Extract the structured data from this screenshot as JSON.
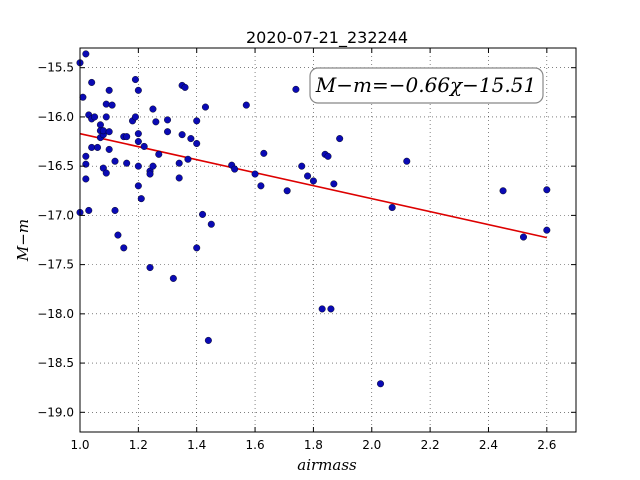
{
  "chart_data": {
    "type": "scatter",
    "title": "2020-07-21_232244",
    "xlabel": "airmass",
    "ylabel": "M−m",
    "xlim": [
      1.0,
      2.7
    ],
    "ylim": [
      -19.2,
      -15.3
    ],
    "xticks": [
      "1.0",
      "1.2",
      "1.4",
      "1.6",
      "1.8",
      "2.0",
      "2.2",
      "2.4",
      "2.6"
    ],
    "yticks": [
      "−15.5",
      "−16.0",
      "−16.5",
      "−17.0",
      "−17.5",
      "−18.0",
      "−18.5",
      "−19.0"
    ],
    "grid": true,
    "annotation": "M−m=−0.66χ−15.51",
    "point_color": "#0a0ab4",
    "fit_color": "#dd0000",
    "fit": {
      "slope": -0.66,
      "intercept": -15.51,
      "x": [
        1.0,
        2.6
      ]
    },
    "points": [
      [
        1.0,
        -15.45
      ],
      [
        1.0,
        -16.97
      ],
      [
        1.01,
        -15.8
      ],
      [
        1.02,
        -15.36
      ],
      [
        1.02,
        -16.4
      ],
      [
        1.02,
        -16.48
      ],
      [
        1.02,
        -16.63
      ],
      [
        1.03,
        -16.95
      ],
      [
        1.03,
        -15.98
      ],
      [
        1.04,
        -16.02
      ],
      [
        1.04,
        -15.65
      ],
      [
        1.04,
        -16.31
      ],
      [
        1.05,
        -16.0
      ],
      [
        1.06,
        -16.31
      ],
      [
        1.07,
        -16.08
      ],
      [
        1.07,
        -16.14
      ],
      [
        1.07,
        -16.21
      ],
      [
        1.08,
        -16.18
      ],
      [
        1.08,
        -16.14
      ],
      [
        1.08,
        -16.52
      ],
      [
        1.09,
        -16.57
      ],
      [
        1.09,
        -15.87
      ],
      [
        1.09,
        -16.0
      ],
      [
        1.1,
        -15.73
      ],
      [
        1.1,
        -16.15
      ],
      [
        1.1,
        -16.33
      ],
      [
        1.11,
        -15.88
      ],
      [
        1.12,
        -16.95
      ],
      [
        1.12,
        -16.45
      ],
      [
        1.13,
        -17.2
      ],
      [
        1.15,
        -16.2
      ],
      [
        1.15,
        -17.33
      ],
      [
        1.16,
        -16.47
      ],
      [
        1.16,
        -16.2
      ],
      [
        1.18,
        -16.04
      ],
      [
        1.19,
        -16.0
      ],
      [
        1.19,
        -15.62
      ],
      [
        1.2,
        -15.73
      ],
      [
        1.2,
        -16.17
      ],
      [
        1.2,
        -16.5
      ],
      [
        1.2,
        -16.7
      ],
      [
        1.2,
        -16.25
      ],
      [
        1.21,
        -16.83
      ],
      [
        1.22,
        -16.3
      ],
      [
        1.24,
        -16.55
      ],
      [
        1.24,
        -16.58
      ],
      [
        1.24,
        -17.53
      ],
      [
        1.25,
        -15.92
      ],
      [
        1.25,
        -16.5
      ],
      [
        1.26,
        -16.05
      ],
      [
        1.27,
        -16.38
      ],
      [
        1.3,
        -16.03
      ],
      [
        1.3,
        -16.15
      ],
      [
        1.32,
        -17.64
      ],
      [
        1.34,
        -16.62
      ],
      [
        1.34,
        -16.47
      ],
      [
        1.35,
        -16.18
      ],
      [
        1.35,
        -15.68
      ],
      [
        1.36,
        -15.7
      ],
      [
        1.37,
        -16.43
      ],
      [
        1.38,
        -16.22
      ],
      [
        1.4,
        -16.27
      ],
      [
        1.4,
        -16.04
      ],
      [
        1.4,
        -17.33
      ],
      [
        1.42,
        -16.99
      ],
      [
        1.43,
        -15.9
      ],
      [
        1.44,
        -18.27
      ],
      [
        1.45,
        -17.09
      ],
      [
        1.52,
        -16.49
      ],
      [
        1.53,
        -16.53
      ],
      [
        1.57,
        -15.88
      ],
      [
        1.6,
        -16.58
      ],
      [
        1.62,
        -16.7
      ],
      [
        1.63,
        -16.37
      ],
      [
        1.71,
        -16.75
      ],
      [
        1.74,
        -15.72
      ],
      [
        1.76,
        -16.5
      ],
      [
        1.78,
        -16.6
      ],
      [
        1.8,
        -16.65
      ],
      [
        1.83,
        -17.95
      ],
      [
        1.84,
        -16.38
      ],
      [
        1.85,
        -16.4
      ],
      [
        1.86,
        -17.95
      ],
      [
        1.87,
        -16.68
      ],
      [
        1.89,
        -16.22
      ],
      [
        2.03,
        -18.71
      ],
      [
        2.07,
        -16.92
      ],
      [
        2.12,
        -16.45
      ],
      [
        2.45,
        -16.75
      ],
      [
        2.52,
        -17.22
      ],
      [
        2.6,
        -16.74
      ],
      [
        2.6,
        -17.15
      ]
    ]
  }
}
